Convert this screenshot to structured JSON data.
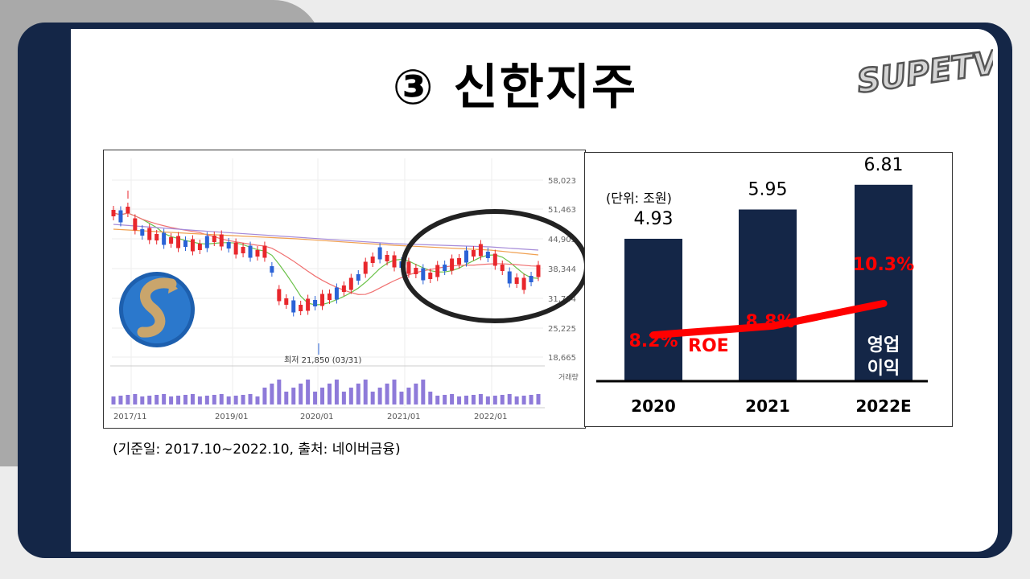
{
  "title": "③ 신한지주",
  "logo": {
    "text": "SUPETV",
    "icon": "supertv-logo"
  },
  "caption": "(기준일: 2017.10~2022.10,  출처: 네이버금융)",
  "colors": {
    "frame": "#142647",
    "bar": "#142647",
    "roe_line": "#ff0000",
    "up_candle": "#e8272c",
    "down_candle": "#2a62d6",
    "volume": "#8e7ad9"
  },
  "stock_chart": {
    "y_ticks": [
      "58,023",
      "51,463",
      "44,903",
      "38,344",
      "31,784",
      "25,225",
      "18,665"
    ],
    "x_ticks": [
      "2017/11",
      "2019/01",
      "2020/01",
      "2021/01",
      "2022/01"
    ],
    "low_annotation": "최저 21,850 (03/31)",
    "volume_label": "거래량",
    "company_logo": "shinhan-logo",
    "highlight": "circle-highlight"
  },
  "chart_data": {
    "type": "bar",
    "unit_label": "(단위: 조원)",
    "categories": [
      "2020",
      "2021",
      "2022E"
    ],
    "series": [
      {
        "name": "영업이익",
        "values": [
          4.93,
          5.95,
          6.81
        ],
        "labels": [
          "4.93",
          "5.95",
          "6.81"
        ]
      },
      {
        "name": "ROE",
        "values": [
          8.2,
          8.8,
          10.3
        ],
        "labels": [
          "8.2%",
          "8.8%",
          "10.3%"
        ]
      }
    ],
    "bar_series_label": [
      "영업",
      "이익"
    ],
    "line_series_label": "ROE",
    "ylim": [
      0,
      7
    ]
  }
}
